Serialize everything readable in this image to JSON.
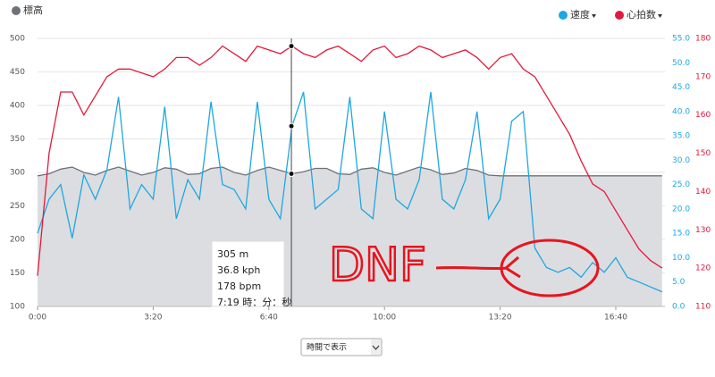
{
  "chart_data": {
    "type": "line",
    "x": [
      0,
      20,
      40,
      60,
      80,
      100,
      120,
      140,
      160,
      180,
      200,
      220,
      240,
      260,
      280,
      300,
      320,
      340,
      360,
      380,
      400,
      420,
      440,
      460,
      480,
      500,
      520,
      540,
      560,
      580,
      600,
      620,
      640,
      660,
      680,
      700,
      720,
      740,
      760,
      780,
      800,
      820,
      840,
      860,
      880,
      900,
      920,
      940,
      960,
      980,
      1000,
      1020,
      1040,
      1060,
      1080
    ],
    "xlim": [
      0,
      1085
    ],
    "xticks": [
      {
        "value": 0,
        "label": "0:00"
      },
      {
        "value": 200,
        "label": "3:20"
      },
      {
        "value": 400,
        "label": "6:40"
      },
      {
        "value": 600,
        "label": "10:00"
      },
      {
        "value": 800,
        "label": "13:20"
      },
      {
        "value": 1000,
        "label": "16:40"
      }
    ],
    "ylim": [
      100,
      500
    ],
    "yticks": [
      100,
      150,
      200,
      250,
      300,
      350,
      400,
      450,
      500
    ],
    "y2lim": [
      0,
      55
    ],
    "y2ticks": [
      {
        "value": 0,
        "label": "0.0"
      },
      {
        "value": 5,
        "label": "5.0"
      },
      {
        "value": 10,
        "label": "10.0"
      },
      {
        "value": 15,
        "label": "15.0"
      },
      {
        "value": 20,
        "label": "20.0"
      },
      {
        "value": 25,
        "label": "25.0"
      },
      {
        "value": 30,
        "label": "30.0"
      },
      {
        "value": 35,
        "label": "35.0"
      },
      {
        "value": 40,
        "label": "40.0"
      },
      {
        "value": 45,
        "label": "45.0"
      },
      {
        "value": 50,
        "label": "50.0"
      },
      {
        "value": 55,
        "label": "55.0"
      }
    ],
    "y3lim": [
      110,
      180
    ],
    "y3ticks": [
      110,
      120,
      130,
      140,
      150,
      160,
      170,
      180
    ],
    "grid": true,
    "series": [
      {
        "name": "標高",
        "color": "#6d7278",
        "axis": "y",
        "area": true,
        "values": [
          295,
          298,
          305,
          308,
          300,
          296,
          303,
          308,
          302,
          296,
          300,
          307,
          305,
          297,
          298,
          306,
          308,
          300,
          296,
          303,
          308,
          303,
          298,
          301,
          306,
          306,
          298,
          297,
          305,
          307,
          300,
          296,
          302,
          308,
          304,
          297,
          299,
          306,
          303,
          296,
          295,
          295,
          295,
          295,
          295,
          295,
          295,
          295,
          295,
          295,
          295,
          295,
          295,
          295,
          295
        ]
      },
      {
        "name": "速度",
        "color": "#1ea7e1",
        "axis": "y2",
        "values": [
          15,
          22,
          25,
          14,
          27,
          22,
          28,
          43,
          20,
          25,
          22,
          41,
          18,
          26,
          22,
          42,
          25,
          24,
          20,
          42,
          22,
          18,
          37,
          44,
          20,
          22,
          24,
          43,
          20,
          18,
          40,
          22,
          20,
          26,
          44,
          22,
          20,
          26,
          40,
          18,
          22,
          38,
          40,
          12,
          8,
          7,
          8,
          6,
          9,
          7,
          10,
          6,
          5,
          4,
          3
        ]
      },
      {
        "name": "心拍数",
        "color": "#e3193b",
        "axis": "y3",
        "values": [
          118,
          150,
          166,
          166,
          160,
          165,
          170,
          172,
          172,
          171,
          170,
          172,
          175,
          175,
          173,
          175,
          178,
          176,
          174,
          178,
          177,
          176,
          178,
          176,
          175,
          177,
          178,
          176,
          174,
          177,
          178,
          175,
          176,
          178,
          177,
          175,
          176,
          177,
          175,
          172,
          175,
          176,
          172,
          170,
          165,
          160,
          155,
          148,
          142,
          140,
          135,
          130,
          125,
          122,
          120
        ]
      }
    ],
    "tooltip": {
      "x": {
        "value": 439,
        "label": "7:19 時：分：秒"
      },
      "lines": [
        "305 m",
        "36.8 kph",
        "178 bpm"
      ]
    },
    "annotation": "DNF",
    "control": "時間で表示"
  }
}
